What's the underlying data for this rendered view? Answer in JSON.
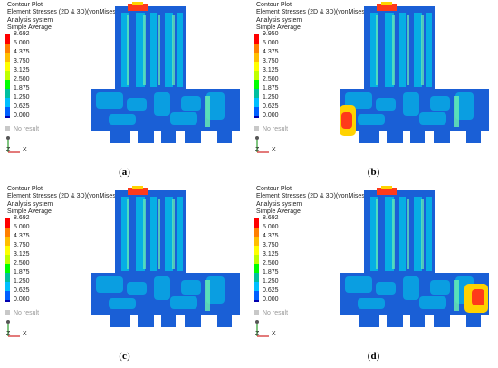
{
  "panels": [
    {
      "title": "Contour Plot",
      "subtitle": "Element Stresses (2D & 3D)(vonMises, Max)",
      "line3": "Analysis system",
      "line4": "Simple Average",
      "legend_values": [
        "8.692",
        "5.000",
        "4.375",
        "3.750",
        "3.125",
        "2.500",
        "1.875",
        "1.250",
        "0.625",
        "0.000"
      ],
      "no_result": "No result",
      "caption": "a",
      "hotspot": "none"
    },
    {
      "title": "Contour Plot",
      "subtitle": "Element Stresses (2D & 3D)(vonMises, Max)",
      "line3": "Analysis system",
      "line4": "Simple Average",
      "legend_values": [
        "9.950",
        "5.000",
        "4.375",
        "3.750",
        "3.125",
        "2.500",
        "1.875",
        "1.250",
        "0.625",
        "0.000"
      ],
      "no_result": "No result",
      "caption": "b",
      "hotspot": "left"
    },
    {
      "title": "Contour Plot",
      "subtitle": "Element Stresses (2D & 3D)(vonMises, Max)",
      "line3": "Analysis system",
      "line4": "Simple Average",
      "legend_values": [
        "8.692",
        "5.000",
        "4.375",
        "3.750",
        "3.125",
        "2.500",
        "1.875",
        "1.250",
        "0.625",
        "0.000"
      ],
      "no_result": "No result",
      "caption": "c",
      "hotspot": "none"
    },
    {
      "title": "Contour Plot",
      "subtitle": "Element Stresses (2D & 3D)(vonMises, Max)",
      "line3": "Analysis system",
      "line4": "Simple Average",
      "legend_values": [
        "8.692",
        "5.000",
        "4.375",
        "3.750",
        "3.125",
        "2.500",
        "1.875",
        "1.250",
        "0.625",
        "0.000"
      ],
      "no_result": "No result",
      "caption": "d",
      "hotspot": "right"
    }
  ],
  "axes": {
    "z_label": "Z",
    "x_label": "X"
  },
  "colors": {
    "legend": [
      "#ff0000",
      "#ff7f00",
      "#ffbf00",
      "#ffff00",
      "#bfff00",
      "#00ff00",
      "#00bf9f",
      "#00bfff",
      "#0060ff",
      "#0000b0"
    ],
    "no_result": "#c8c8c8",
    "structure_base": "#1a5fd6",
    "structure_mid": "#00c8e8",
    "structure_light": "#6cf0b0"
  }
}
